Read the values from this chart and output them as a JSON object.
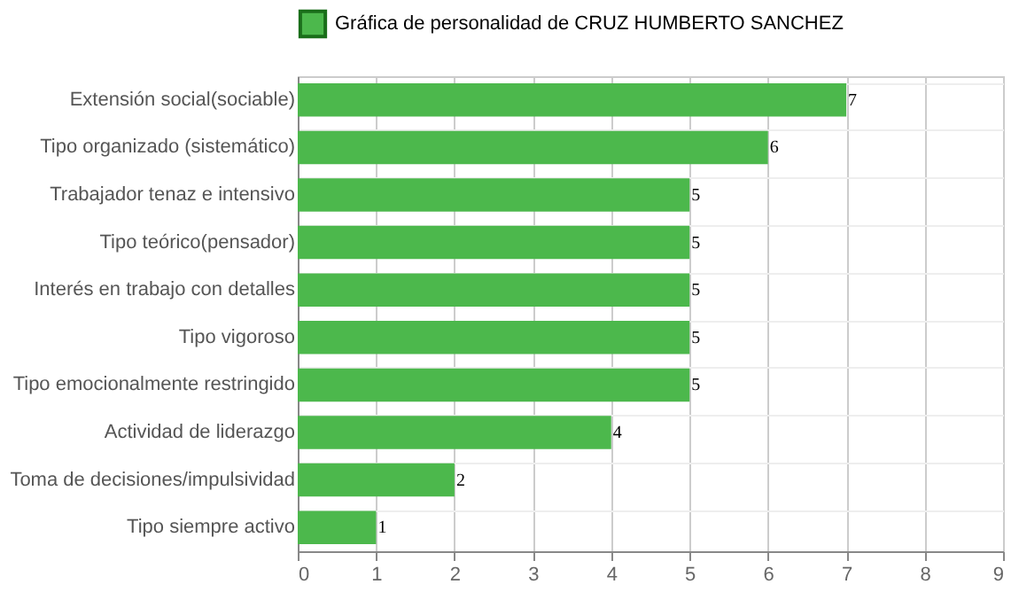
{
  "chart_data": {
    "type": "bar",
    "orientation": "horizontal",
    "categories": [
      "Extensión social(sociable)",
      "Tipo organizado (sistemático)",
      "Trabajador tenaz e intensivo",
      "Tipo teórico(pensador)",
      "Interés en trabajo con detalles",
      "Tipo vigoroso",
      "Tipo emocionalmente restringido",
      "Actividad de liderazgo",
      "Toma de decisiones/impulsividad",
      "Tipo siempre activo"
    ],
    "series": [
      {
        "name": "Gráfica de personalidad de CRUZ HUMBERTO SANCHEZ",
        "color": "#4cb84c",
        "values": [
          7,
          6,
          5,
          5,
          5,
          5,
          5,
          4,
          2,
          1
        ]
      }
    ],
    "xlim": [
      0,
      9
    ],
    "xticks": [
      0,
      1,
      2,
      3,
      4,
      5,
      6,
      7,
      8,
      9
    ],
    "grid": true,
    "legend": "top",
    "data_labels": true
  }
}
